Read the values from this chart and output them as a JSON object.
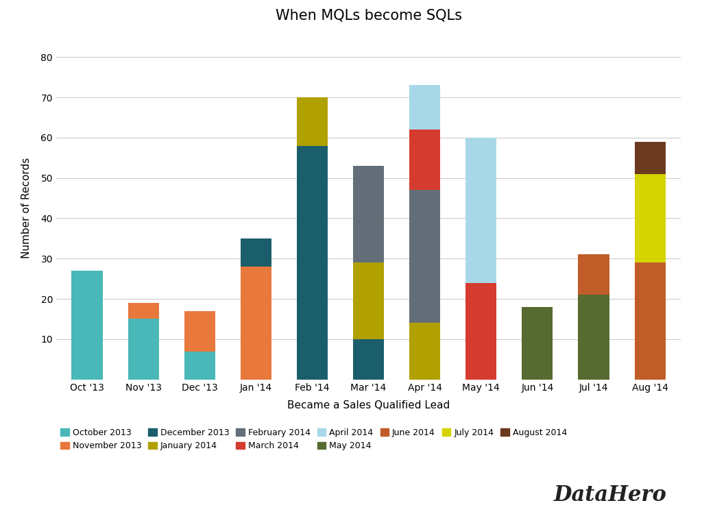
{
  "title": "When MQLs become SQLs",
  "xlabel": "Became a Sales Qualified Lead",
  "ylabel": "Number of Records",
  "xlabels": [
    "Oct '13",
    "Nov '13",
    "Dec '13",
    "Jan '14",
    "Feb '14",
    "Mar '14",
    "Apr '14",
    "May '14",
    "Jun '14",
    "Jul '14",
    "Aug '14"
  ],
  "series_labels": [
    "October 2013",
    "November 2013",
    "December 2013",
    "January 2014",
    "February 2014",
    "March 2014",
    "April 2014",
    "May 2014",
    "June 2014",
    "July 2014",
    "August 2014"
  ],
  "colors": [
    "#4ab8b8",
    "#e8783c",
    "#1b5e6b",
    "#b0a000",
    "#636e79",
    "#d63b2f",
    "#a8d8e8",
    "#556b2f",
    "#c05c28",
    "#d4d400",
    "#6b3a1f"
  ],
  "data": {
    "October 2013": [
      27,
      15,
      7,
      0,
      0,
      0,
      0,
      0,
      0,
      0,
      0
    ],
    "November 2013": [
      0,
      4,
      10,
      28,
      0,
      0,
      0,
      0,
      0,
      0,
      0
    ],
    "December 2013": [
      0,
      0,
      0,
      7,
      58,
      10,
      0,
      0,
      0,
      0,
      0
    ],
    "January 2014": [
      0,
      0,
      0,
      0,
      12,
      19,
      14,
      0,
      0,
      0,
      0
    ],
    "February 2014": [
      0,
      0,
      0,
      0,
      0,
      24,
      33,
      0,
      0,
      0,
      0
    ],
    "March 2014": [
      0,
      0,
      0,
      0,
      0,
      0,
      15,
      24,
      0,
      0,
      0
    ],
    "April 2014": [
      0,
      0,
      0,
      0,
      0,
      0,
      11,
      36,
      0,
      0,
      0
    ],
    "May 2014": [
      0,
      0,
      0,
      0,
      0,
      0,
      0,
      0,
      18,
      21,
      0
    ],
    "June 2014": [
      0,
      0,
      0,
      0,
      0,
      0,
      0,
      0,
      0,
      10,
      29
    ],
    "July 2014": [
      0,
      0,
      0,
      0,
      0,
      0,
      0,
      0,
      0,
      0,
      22
    ],
    "August 2014": [
      0,
      0,
      0,
      0,
      0,
      0,
      0,
      0,
      0,
      0,
      8
    ]
  },
  "ylim": [
    0,
    85
  ],
  "yticks": [
    0,
    10,
    20,
    30,
    40,
    50,
    60,
    70,
    80
  ],
  "background_color": "#ffffff",
  "grid_color": "#cccccc",
  "title_fontsize": 15,
  "axis_fontsize": 11,
  "tick_fontsize": 10,
  "legend_fontsize": 9,
  "bar_width": 0.55
}
